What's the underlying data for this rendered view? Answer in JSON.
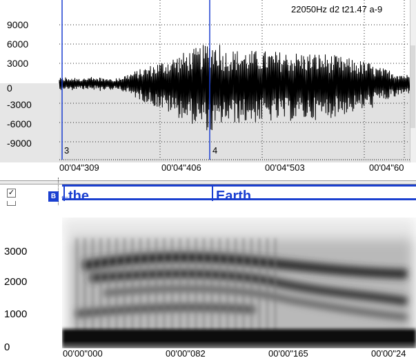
{
  "waveform": {
    "info": "22050Hz d2 t21.47 a-9",
    "y_ticks": [
      "9000",
      "6000",
      "3000",
      "0",
      "-3000",
      "-6000",
      "-9000"
    ],
    "x_ticks": [
      "00'04\"309",
      "00'04\"406",
      "00'04\"503",
      "00'04\"60"
    ],
    "markers": [
      "3",
      "4"
    ]
  },
  "tier": {
    "words": [
      "the",
      "Earth"
    ],
    "button_label": "B",
    "arrow": "←",
    "checkbox": "✓"
  },
  "spectrogram": {
    "y_ticks": [
      "3000",
      "2000",
      "1000",
      "0"
    ],
    "x_ticks": [
      "00'00\"000",
      "00'00\"082",
      "00'00\"165",
      "00'00\"24"
    ]
  },
  "colors": {
    "cursor_blue": "#1a3fd0",
    "tier_text": "#1a3fd0",
    "wave": "#000000"
  },
  "icons": {
    "checkbox": "checkbox-icon",
    "b_button": "b-button-icon",
    "arrow": "left-arrow-icon"
  }
}
